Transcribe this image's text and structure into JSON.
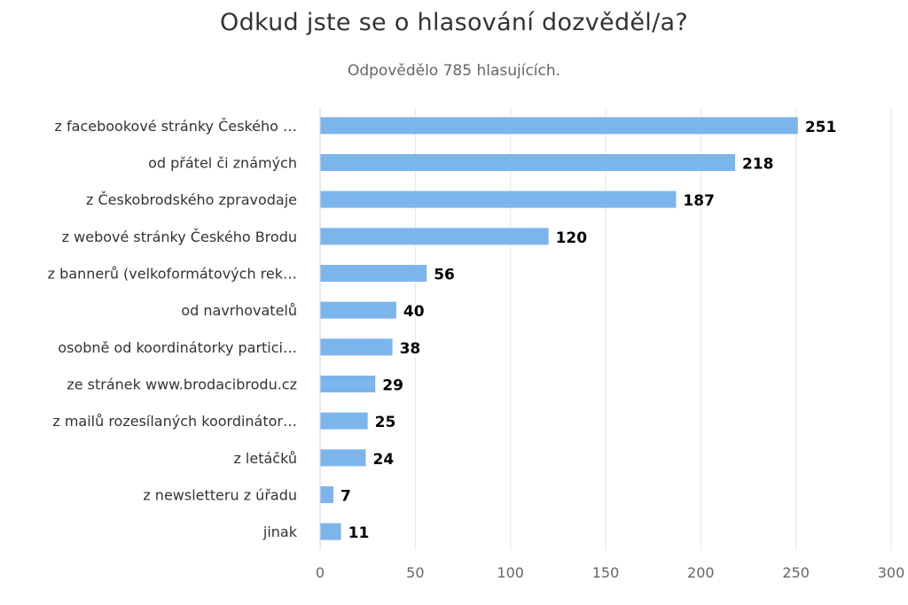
{
  "chart_data": {
    "type": "bar",
    "orientation": "horizontal",
    "title": "Odkud jste se o hlasování dozvěděl/a?",
    "subtitle": "Odpovědělo 785 hlasujících.",
    "categories": [
      "z facebookové stránky Českého …",
      "od přátel či známých",
      "z Českobrodského zpravodaje",
      "z webové stránky Českého Brodu",
      "z bannerů (velkoformátových rek…",
      "od navrhovatelů",
      "osobně od koordinátorky partici…",
      "ze stránek www.brodacibrodu.cz",
      "z mailů rozesílaných koordinátor…",
      "z letáčků",
      "z newsletteru z úřadu",
      "jinak"
    ],
    "values": [
      251,
      218,
      187,
      120,
      56,
      40,
      38,
      29,
      25,
      24,
      7,
      11
    ],
    "xlim": [
      0,
      300
    ],
    "xticks": [
      0,
      50,
      100,
      150,
      200,
      250,
      300
    ],
    "grid": true,
    "bar_color": "#7cb5ec",
    "grid_color": "#e6e6e6",
    "label_color": "#000000"
  }
}
